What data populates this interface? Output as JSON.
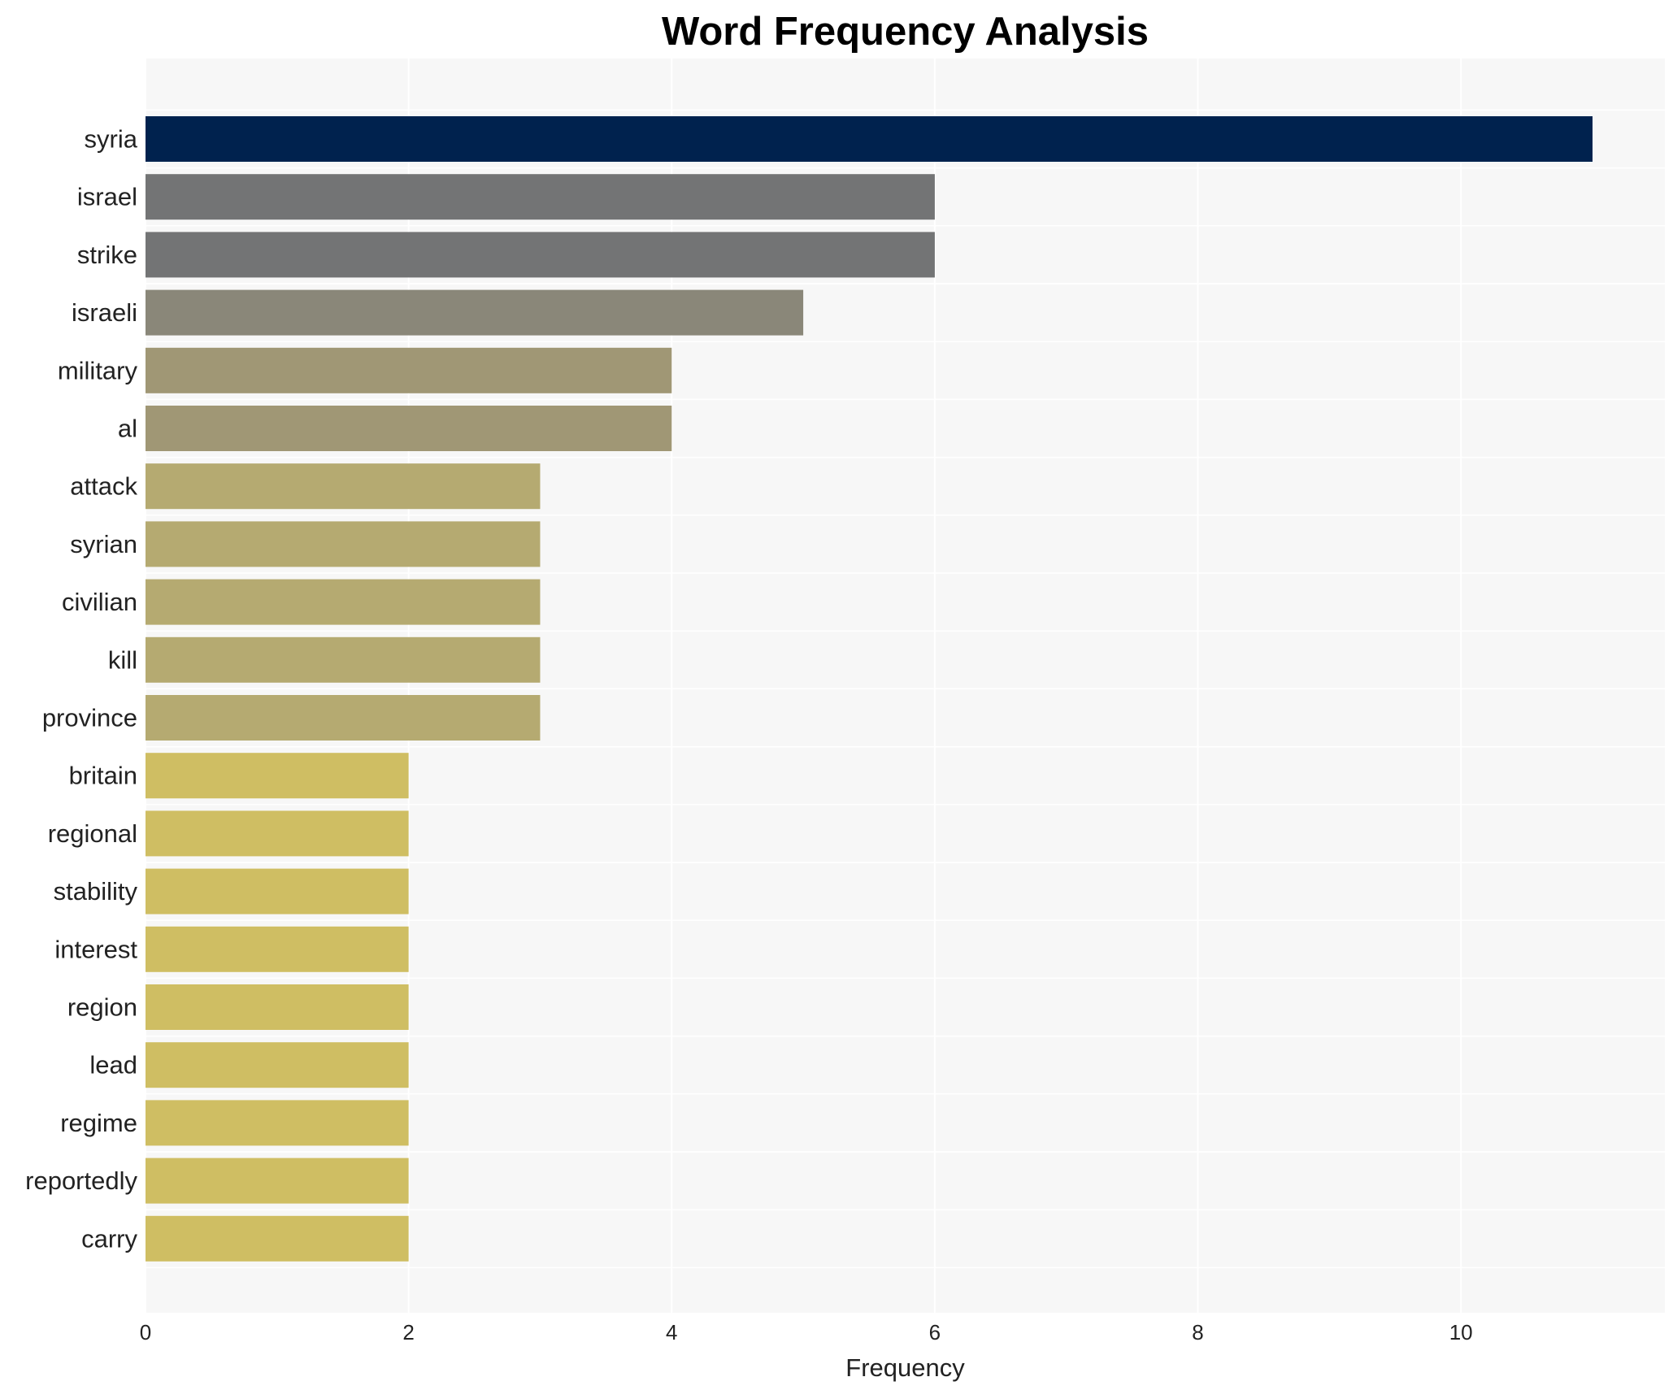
{
  "chart_data": {
    "type": "bar",
    "orientation": "horizontal",
    "title": "Word Frequency Analysis",
    "xlabel": "Frequency",
    "ylabel": "",
    "xlim": [
      0,
      11.55
    ],
    "xticks": [
      0,
      2,
      4,
      6,
      8,
      10
    ],
    "grid": true,
    "categories": [
      "syria",
      "israel",
      "strike",
      "israeli",
      "military",
      "al",
      "attack",
      "syrian",
      "civilian",
      "kill",
      "province",
      "britain",
      "regional",
      "stability",
      "interest",
      "region",
      "lead",
      "regime",
      "reportedly",
      "carry"
    ],
    "values": [
      11,
      6,
      6,
      5,
      4,
      4,
      3,
      3,
      3,
      3,
      3,
      2,
      2,
      2,
      2,
      2,
      2,
      2,
      2,
      2
    ],
    "colors": {
      "11": "#00224e",
      "6": "#737475",
      "5": "#8a8779",
      "4": "#a09775",
      "3": "#b5aa71",
      "2": "#cfbe63"
    },
    "background": "#f7f7f7"
  }
}
